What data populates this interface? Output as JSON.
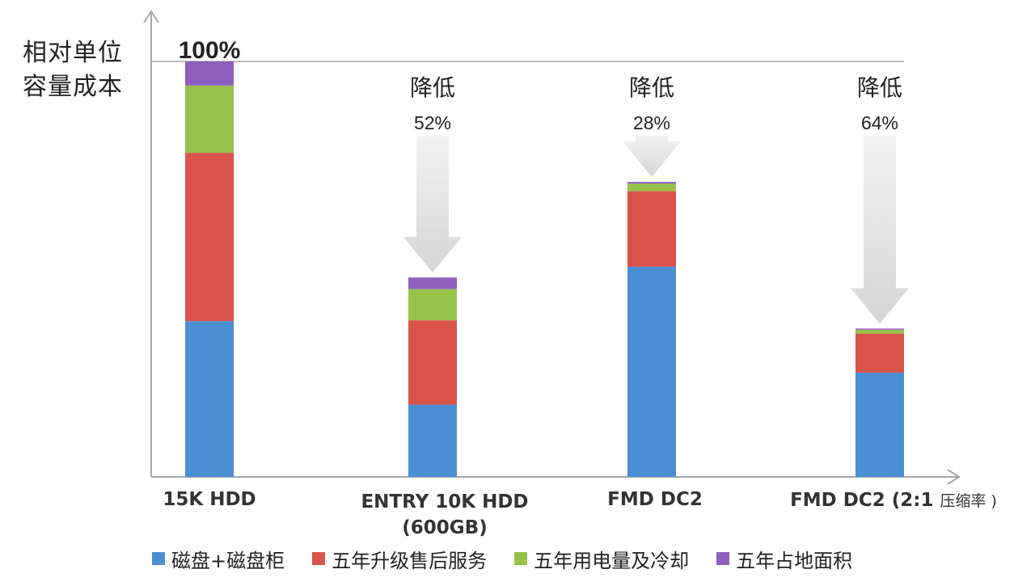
{
  "chart_data": {
    "type": "bar",
    "stacked": true,
    "ylabel": [
      "相对单位",
      "容量成本"
    ],
    "ylim": [
      0,
      100
    ],
    "grid": false,
    "legend_position": "bottom",
    "categories": [
      {
        "label": "15K HDD",
        "sublabel": "",
        "suffix": ""
      },
      {
        "label": "ENTRY 10K HDD",
        "sublabel": "(600GB)",
        "suffix": ""
      },
      {
        "label": "FMD DC2",
        "sublabel": "",
        "suffix": ""
      },
      {
        "label": "FMD DC2 (2:1",
        "sublabel": "",
        "suffix": "压缩率 )"
      }
    ],
    "series": [
      {
        "name": "磁盘+磁盘柜",
        "color": "#4a8fd4",
        "values": [
          37.5,
          17.4,
          50.6,
          25.1
        ]
      },
      {
        "name": "五年升级售后服务",
        "color": "#d9534a",
        "values": [
          40.5,
          20.3,
          18.2,
          9.4
        ]
      },
      {
        "name": "五年用电量及冷却",
        "color": "#96c24a",
        "values": [
          16.2,
          7.5,
          1.8,
          0.9
        ]
      },
      {
        "name": "五年占地面积",
        "color": "#8f5fbf",
        "values": [
          5.8,
          2.8,
          0.4,
          0.3
        ]
      }
    ],
    "top_label": "100%",
    "annotations": [
      {
        "category_index": 1,
        "line1": "降低",
        "line2": "52%"
      },
      {
        "category_index": 2,
        "line1": "降低",
        "line2": "28%"
      },
      {
        "category_index": 3,
        "line1": "降低",
        "line2": "64%"
      }
    ]
  }
}
